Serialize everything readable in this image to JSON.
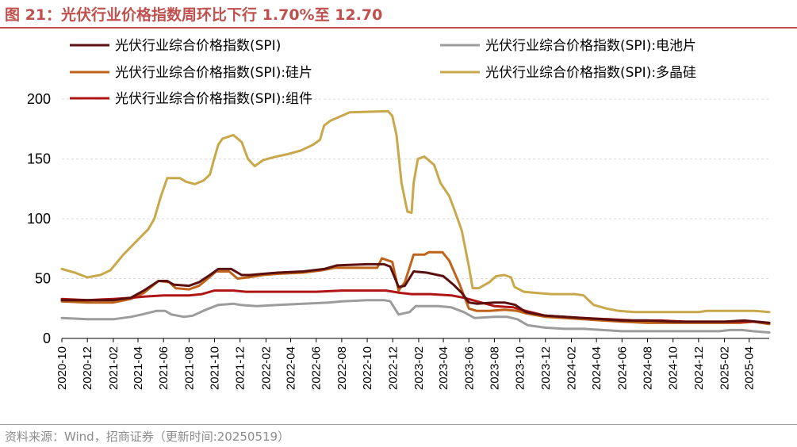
{
  "header": {
    "title": "图 21：光伏行业价格指数周环比下行 1.70%至 12.70"
  },
  "footer": {
    "source": "资料来源：Wind，招商证券（更新时间:20250519）"
  },
  "colors": {
    "accent": "#c0504d",
    "grid": "#d9d9d9",
    "spi": "#5b0f0f",
    "cell": "#9c9c9c",
    "wafer": "#c0631a",
    "polysilicon": "#c9a84c",
    "module": "#b01515"
  },
  "chart_data": {
    "type": "line",
    "title": "",
    "xlabel": "",
    "ylabel": "",
    "ylim": [
      0,
      210
    ],
    "xlim": [
      "2020-10-01",
      "2025-05-19"
    ],
    "grid": true,
    "legend_position": "top",
    "yticks": [
      0,
      50,
      100,
      150,
      200
    ],
    "xticks": [
      "2020-10",
      "2020-12",
      "2021-02",
      "2021-04",
      "2021-06",
      "2021-08",
      "2021-10",
      "2021-12",
      "2022-02",
      "2022-04",
      "2022-06",
      "2022-08",
      "2022-10",
      "2022-12",
      "2023-02",
      "2023-04",
      "2023-06",
      "2023-08",
      "2023-10",
      "2023-12",
      "2024-02",
      "2024-04",
      "2024-06",
      "2024-08",
      "2024-10",
      "2024-12",
      "2025-02",
      "2025-04"
    ],
    "series": [
      {
        "name": "光伏行业综合价格指数(SPI)",
        "color_key": "spi",
        "points": [
          [
            "2020-10-01",
            32
          ],
          [
            "2020-12-01",
            32
          ],
          [
            "2021-02-01",
            32
          ],
          [
            "2021-03-15",
            34
          ],
          [
            "2021-04-15",
            40
          ],
          [
            "2021-05-20",
            48
          ],
          [
            "2021-06-10",
            48
          ],
          [
            "2021-06-25",
            45
          ],
          [
            "2021-08-01",
            44
          ],
          [
            "2021-08-25",
            47
          ],
          [
            "2021-09-20",
            53
          ],
          [
            "2021-10-10",
            58
          ],
          [
            "2021-11-10",
            58
          ],
          [
            "2021-12-05",
            53
          ],
          [
            "2021-12-25",
            53
          ],
          [
            "2022-01-25",
            54
          ],
          [
            "2022-03-01",
            55
          ],
          [
            "2022-05-01",
            56
          ],
          [
            "2022-06-20",
            58
          ],
          [
            "2022-07-20",
            61
          ],
          [
            "2022-10-01",
            62
          ],
          [
            "2022-11-10",
            62
          ],
          [
            "2022-11-25",
            60
          ],
          [
            "2022-12-15",
            43
          ],
          [
            "2022-12-30",
            44
          ],
          [
            "2023-01-20",
            56
          ],
          [
            "2023-02-20",
            55
          ],
          [
            "2023-04-01",
            52
          ],
          [
            "2023-04-25",
            45
          ],
          [
            "2023-05-15",
            38
          ],
          [
            "2023-06-01",
            30
          ],
          [
            "2023-06-20",
            29
          ],
          [
            "2023-08-01",
            30
          ],
          [
            "2023-08-25",
            30
          ],
          [
            "2023-09-20",
            28
          ],
          [
            "2023-10-15",
            22
          ],
          [
            "2023-12-01",
            19
          ],
          [
            "2024-01-15",
            18
          ],
          [
            "2024-02-28",
            17
          ],
          [
            "2024-04-15",
            16
          ],
          [
            "2024-06-01",
            15
          ],
          [
            "2024-08-01",
            15
          ],
          [
            "2024-10-01",
            14
          ],
          [
            "2024-12-01",
            14
          ],
          [
            "2025-02-01",
            14
          ],
          [
            "2025-03-20",
            15
          ],
          [
            "2025-05-19",
            13
          ]
        ]
      },
      {
        "name": "光伏行业综合价格指数(SPI):电池片",
        "color_key": "cell",
        "points": [
          [
            "2020-10-01",
            17
          ],
          [
            "2020-12-01",
            16
          ],
          [
            "2021-02-01",
            16
          ],
          [
            "2021-03-15",
            18
          ],
          [
            "2021-04-10",
            20
          ],
          [
            "2021-05-15",
            23
          ],
          [
            "2021-06-05",
            23
          ],
          [
            "2021-06-20",
            20
          ],
          [
            "2021-07-20",
            18
          ],
          [
            "2021-08-10",
            19
          ],
          [
            "2021-09-10",
            24
          ],
          [
            "2021-10-10",
            28
          ],
          [
            "2021-11-15",
            29
          ],
          [
            "2021-12-01",
            28
          ],
          [
            "2022-01-10",
            27
          ],
          [
            "2022-03-01",
            28
          ],
          [
            "2022-05-01",
            29
          ],
          [
            "2022-07-01",
            30
          ],
          [
            "2022-08-01",
            31
          ],
          [
            "2022-10-01",
            32
          ],
          [
            "2022-11-10",
            32
          ],
          [
            "2022-11-25",
            31
          ],
          [
            "2022-12-15",
            20
          ],
          [
            "2023-01-10",
            22
          ],
          [
            "2023-01-25",
            27
          ],
          [
            "2023-03-20",
            27
          ],
          [
            "2023-04-20",
            26
          ],
          [
            "2023-05-20",
            22
          ],
          [
            "2023-06-15",
            17
          ],
          [
            "2023-08-01",
            18
          ],
          [
            "2023-09-01",
            18
          ],
          [
            "2023-09-25",
            16
          ],
          [
            "2023-10-20",
            11
          ],
          [
            "2023-11-30",
            9
          ],
          [
            "2024-01-15",
            8
          ],
          [
            "2024-03-01",
            8
          ],
          [
            "2024-04-15",
            7
          ],
          [
            "2024-06-01",
            6
          ],
          [
            "2024-08-01",
            6
          ],
          [
            "2024-10-01",
            6
          ],
          [
            "2024-12-01",
            6
          ],
          [
            "2025-01-20",
            6
          ],
          [
            "2025-02-15",
            7
          ],
          [
            "2025-03-15",
            7
          ],
          [
            "2025-04-10",
            6
          ],
          [
            "2025-05-19",
            5
          ]
        ]
      },
      {
        "name": "光伏行业综合价格指数(SPI):硅片",
        "color_key": "wafer",
        "points": [
          [
            "2020-10-01",
            31
          ],
          [
            "2020-12-01",
            30
          ],
          [
            "2021-02-01",
            30
          ],
          [
            "2021-03-15",
            33
          ],
          [
            "2021-04-15",
            38
          ],
          [
            "2021-05-20",
            48
          ],
          [
            "2021-06-15",
            47
          ],
          [
            "2021-06-30",
            42
          ],
          [
            "2021-08-01",
            41
          ],
          [
            "2021-08-25",
            44
          ],
          [
            "2021-09-15",
            50
          ],
          [
            "2021-10-05",
            56
          ],
          [
            "2021-11-05",
            56
          ],
          [
            "2021-11-25",
            50
          ],
          [
            "2021-12-20",
            51
          ],
          [
            "2022-01-25",
            53
          ],
          [
            "2022-03-01",
            54
          ],
          [
            "2022-05-01",
            55
          ],
          [
            "2022-06-15",
            57
          ],
          [
            "2022-07-15",
            59
          ],
          [
            "2022-10-01",
            59
          ],
          [
            "2022-10-25",
            59
          ],
          [
            "2022-11-05",
            67
          ],
          [
            "2022-11-30",
            64
          ],
          [
            "2022-12-15",
            40
          ],
          [
            "2022-12-30",
            47
          ],
          [
            "2023-01-20",
            70
          ],
          [
            "2023-02-15",
            70
          ],
          [
            "2023-02-25",
            72
          ],
          [
            "2023-03-30",
            72
          ],
          [
            "2023-04-15",
            65
          ],
          [
            "2023-05-10",
            45
          ],
          [
            "2023-06-01",
            25
          ],
          [
            "2023-06-20",
            23
          ],
          [
            "2023-07-20",
            23
          ],
          [
            "2023-08-25",
            24
          ],
          [
            "2023-09-25",
            23
          ],
          [
            "2023-10-15",
            21
          ],
          [
            "2023-12-01",
            18
          ],
          [
            "2024-01-15",
            17
          ],
          [
            "2024-03-01",
            16
          ],
          [
            "2024-04-15",
            15
          ],
          [
            "2024-06-01",
            14
          ],
          [
            "2024-08-01",
            13
          ],
          [
            "2024-10-01",
            13
          ],
          [
            "2024-12-01",
            13
          ],
          [
            "2025-02-01",
            13
          ],
          [
            "2025-03-10",
            13
          ],
          [
            "2025-04-10",
            14
          ],
          [
            "2025-05-19",
            12
          ]
        ]
      },
      {
        "name": "光伏行业综合价格指数(SPI):多晶硅",
        "color_key": "polysilicon",
        "points": [
          [
            "2020-10-01",
            58
          ],
          [
            "2020-11-01",
            55
          ],
          [
            "2020-12-01",
            51
          ],
          [
            "2021-01-01",
            53
          ],
          [
            "2021-01-25",
            57
          ],
          [
            "2021-02-25",
            70
          ],
          [
            "2021-03-25",
            80
          ],
          [
            "2021-04-25",
            91
          ],
          [
            "2021-05-10",
            100
          ],
          [
            "2021-05-25",
            118
          ],
          [
            "2021-06-10",
            134
          ],
          [
            "2021-07-10",
            134
          ],
          [
            "2021-07-25",
            131
          ],
          [
            "2021-08-15",
            129
          ],
          [
            "2021-09-05",
            132
          ],
          [
            "2021-09-20",
            137
          ],
          [
            "2021-09-30",
            150
          ],
          [
            "2021-10-10",
            162
          ],
          [
            "2021-10-20",
            167
          ],
          [
            "2021-11-15",
            170
          ],
          [
            "2021-12-05",
            164
          ],
          [
            "2021-12-20",
            150
          ],
          [
            "2022-01-05",
            144
          ],
          [
            "2022-01-25",
            149
          ],
          [
            "2022-02-25",
            152
          ],
          [
            "2022-03-25",
            154
          ],
          [
            "2022-04-25",
            157
          ],
          [
            "2022-05-25",
            162
          ],
          [
            "2022-06-10",
            166
          ],
          [
            "2022-06-20",
            178
          ],
          [
            "2022-07-05",
            182
          ],
          [
            "2022-07-25",
            185
          ],
          [
            "2022-08-20",
            189
          ],
          [
            "2022-11-20",
            190
          ],
          [
            "2022-11-30",
            186
          ],
          [
            "2022-12-10",
            170
          ],
          [
            "2022-12-22",
            130
          ],
          [
            "2023-01-05",
            106
          ],
          [
            "2023-01-15",
            105
          ],
          [
            "2023-01-20",
            130
          ],
          [
            "2023-01-30",
            150
          ],
          [
            "2023-02-15",
            152
          ],
          [
            "2023-03-10",
            145
          ],
          [
            "2023-03-25",
            130
          ],
          [
            "2023-04-15",
            119
          ],
          [
            "2023-04-30",
            105
          ],
          [
            "2023-05-15",
            90
          ],
          [
            "2023-06-01",
            60
          ],
          [
            "2023-06-10",
            42
          ],
          [
            "2023-06-25",
            42
          ],
          [
            "2023-07-20",
            47
          ],
          [
            "2023-08-05",
            52
          ],
          [
            "2023-08-25",
            53
          ],
          [
            "2023-09-10",
            51
          ],
          [
            "2023-09-18",
            43
          ],
          [
            "2023-10-10",
            39
          ],
          [
            "2023-11-10",
            38
          ],
          [
            "2023-12-15",
            37
          ],
          [
            "2024-01-20",
            37
          ],
          [
            "2024-02-10",
            37
          ],
          [
            "2024-03-01",
            36
          ],
          [
            "2024-03-25",
            28
          ],
          [
            "2024-04-25",
            25
          ],
          [
            "2024-05-25",
            23
          ],
          [
            "2024-07-01",
            22
          ],
          [
            "2024-10-01",
            22
          ],
          [
            "2024-12-01",
            22
          ],
          [
            "2024-12-20",
            23
          ],
          [
            "2025-01-25",
            23
          ],
          [
            "2025-04-15",
            23
          ],
          [
            "2025-05-19",
            22
          ]
        ]
      },
      {
        "name": "光伏行业综合价格指数(SPI):组件",
        "color_key": "module",
        "points": [
          [
            "2020-10-01",
            33
          ],
          [
            "2020-12-01",
            32
          ],
          [
            "2021-02-01",
            33
          ],
          [
            "2021-03-15",
            34
          ],
          [
            "2021-04-15",
            35
          ],
          [
            "2021-06-01",
            36
          ],
          [
            "2021-08-01",
            36
          ],
          [
            "2021-09-01",
            37
          ],
          [
            "2021-10-01",
            40
          ],
          [
            "2021-11-15",
            40
          ],
          [
            "2021-12-15",
            39
          ],
          [
            "2022-03-01",
            39
          ],
          [
            "2022-06-01",
            39
          ],
          [
            "2022-08-01",
            40
          ],
          [
            "2022-11-15",
            40
          ],
          [
            "2022-12-20",
            38
          ],
          [
            "2023-01-15",
            37
          ],
          [
            "2023-03-01",
            37
          ],
          [
            "2023-04-20",
            36
          ],
          [
            "2023-05-20",
            34
          ],
          [
            "2023-06-20",
            31
          ],
          [
            "2023-08-01",
            27
          ],
          [
            "2023-09-15",
            26
          ],
          [
            "2023-10-15",
            23
          ],
          [
            "2023-12-01",
            19
          ],
          [
            "2024-01-15",
            18
          ],
          [
            "2024-03-01",
            17
          ],
          [
            "2024-05-01",
            16
          ],
          [
            "2024-07-01",
            15
          ],
          [
            "2024-09-01",
            15
          ],
          [
            "2024-11-01",
            14
          ],
          [
            "2025-01-01",
            14
          ],
          [
            "2025-03-01",
            14
          ],
          [
            "2025-04-15",
            14
          ],
          [
            "2025-05-19",
            13
          ]
        ]
      }
    ]
  }
}
